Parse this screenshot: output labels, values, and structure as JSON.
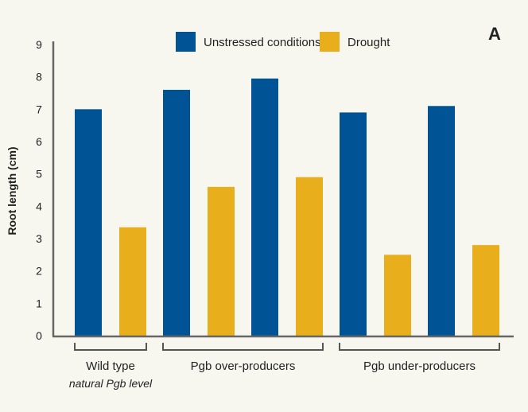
{
  "chart_data": {
    "type": "bar",
    "title": "",
    "panel_label": "A",
    "xlabel": "",
    "ylabel": "Root length (cm)",
    "ylim": [
      0,
      9
    ],
    "yticks": [
      "0",
      "1",
      "2",
      "3",
      "4",
      "5",
      "6",
      "7",
      "8",
      "9"
    ],
    "grid": false,
    "legend_position": "top",
    "categories": [
      "Wild type",
      "Pgb over-producer 1",
      "Pgb over-producer 2",
      "Pgb under-producer 1",
      "Pgb under-producer 2"
    ],
    "series": [
      {
        "name": "Unstressed conditions",
        "color": "#005496",
        "values": [
          7.0,
          7.6,
          7.95,
          6.9,
          7.1
        ]
      },
      {
        "name": "Drought",
        "color": "#e8ae1c",
        "values": [
          3.35,
          4.6,
          4.9,
          2.5,
          2.8
        ]
      }
    ],
    "groups": [
      {
        "label": "Wild type",
        "sublabel": "natural Pgb level",
        "categories": [
          0
        ]
      },
      {
        "label": "Pgb over-producers",
        "sublabel": "",
        "categories": [
          1,
          2
        ]
      },
      {
        "label": "Pgb under-producers",
        "sublabel": "",
        "categories": [
          3,
          4
        ]
      }
    ]
  }
}
